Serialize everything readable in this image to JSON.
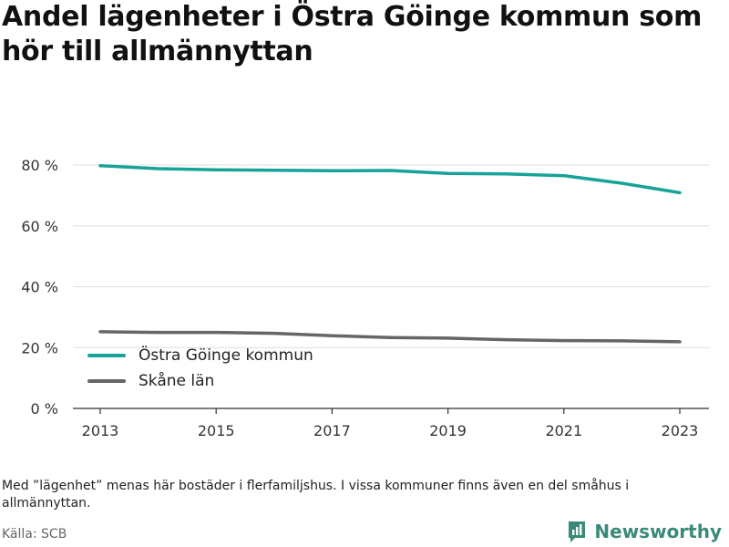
{
  "title": "Andel lägenheter i Östra Göinge kommun som hör till allmännyttan",
  "colors": {
    "kommun": "#17a398",
    "lan": "#666666",
    "grid": "#dddddd",
    "brand": "#3a8a7a"
  },
  "chart_data": {
    "type": "line",
    "x": [
      2013,
      2014,
      2015,
      2016,
      2017,
      2018,
      2019,
      2020,
      2021,
      2022,
      2023
    ],
    "xticks": [
      "2013",
      "2015",
      "2017",
      "2019",
      "2021",
      "2023"
    ],
    "yticks": [
      "0 %",
      "20 %",
      "40 %",
      "60 %",
      "80 %"
    ],
    "ylim": [
      0,
      80
    ],
    "grid": true,
    "legend_position": "bottom-left",
    "series": [
      {
        "name": "Östra Göinge kommun",
        "color": "#17a398",
        "values": [
          79.8,
          78.8,
          78.4,
          78.3,
          78.1,
          78.2,
          77.2,
          77.1,
          76.5,
          74.0,
          70.9
        ]
      },
      {
        "name": "Skåne län",
        "color": "#666666",
        "values": [
          25.2,
          25.0,
          25.0,
          24.7,
          23.9,
          23.3,
          23.1,
          22.6,
          22.3,
          22.2,
          21.9
        ]
      }
    ]
  },
  "note": "Med ”lägenhet” menas här bostäder i flerfamiljshus. I vissa kommuner finns även en del småhus i allmännyttan.",
  "source": "Källa: SCB",
  "brand": {
    "name": "Newsworthy",
    "icon": "newsworthy-logo-icon"
  }
}
